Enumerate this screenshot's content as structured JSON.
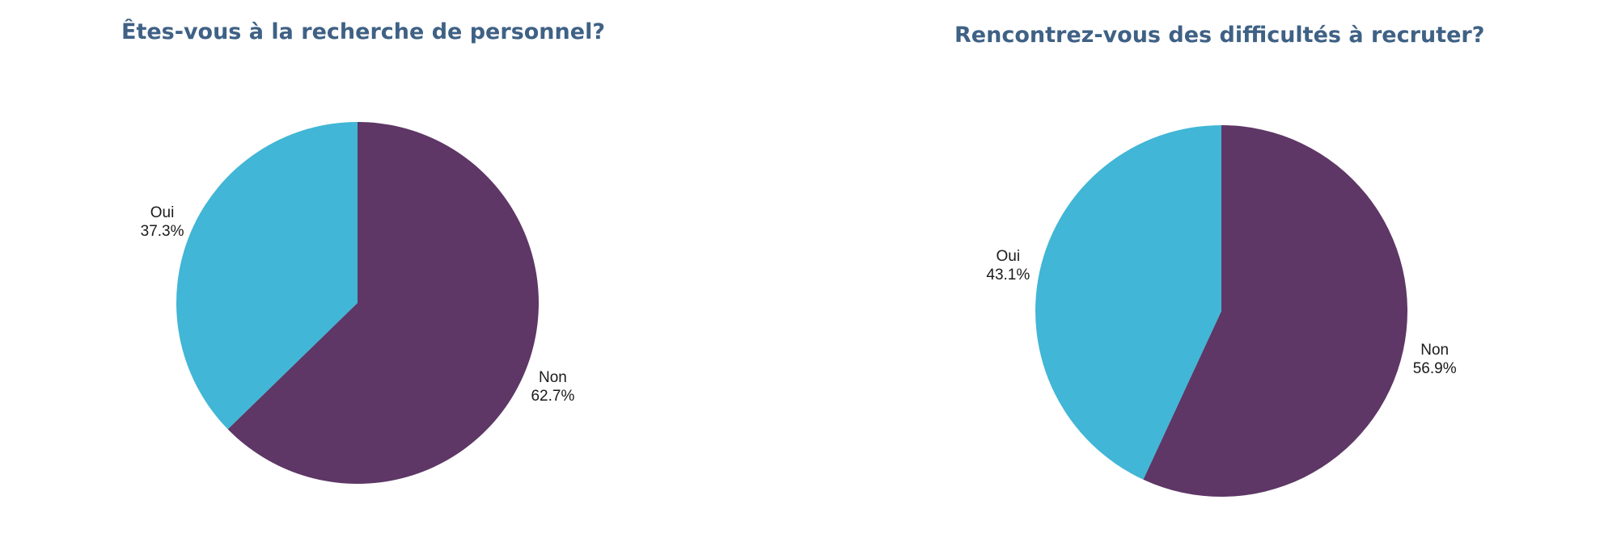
{
  "chart_data": [
    {
      "type": "pie",
      "title": "Êtes-vous à la recherche de personnel?",
      "categories": [
        "Oui",
        "Non"
      ],
      "values": [
        37.3,
        62.7
      ],
      "value_labels": [
        "37.3%",
        "62.7%"
      ],
      "colors": [
        "#41b6d6",
        "#5e3766"
      ],
      "start_angle": "12 o'clock",
      "direction": "clockwise, Non first"
    },
    {
      "type": "pie",
      "title": "Rencontrez-vous des difficultés à recruter?",
      "categories": [
        "Oui",
        "Non"
      ],
      "values": [
        43.1,
        56.9
      ],
      "value_labels": [
        "43.1%",
        "56.9%"
      ],
      "colors": [
        "#41b6d6",
        "#5e3766"
      ],
      "start_angle": "12 o'clock",
      "direction": "clockwise, Non first"
    }
  ]
}
